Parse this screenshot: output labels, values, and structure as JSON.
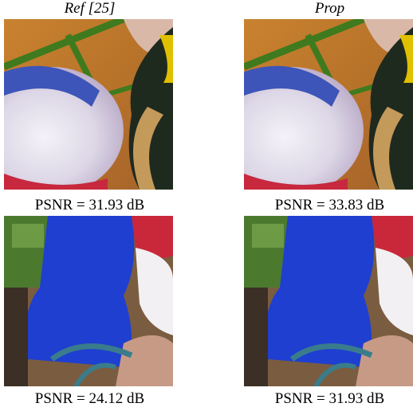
{
  "headers": [
    "Ref [25]",
    "Prop"
  ],
  "captions": [
    [
      "PSNR = 31.93 dB",
      "PSNR = 33.83 dB"
    ],
    [
      "PSNR = 24.12 dB",
      "PSNR = 31.93 dB"
    ]
  ]
}
